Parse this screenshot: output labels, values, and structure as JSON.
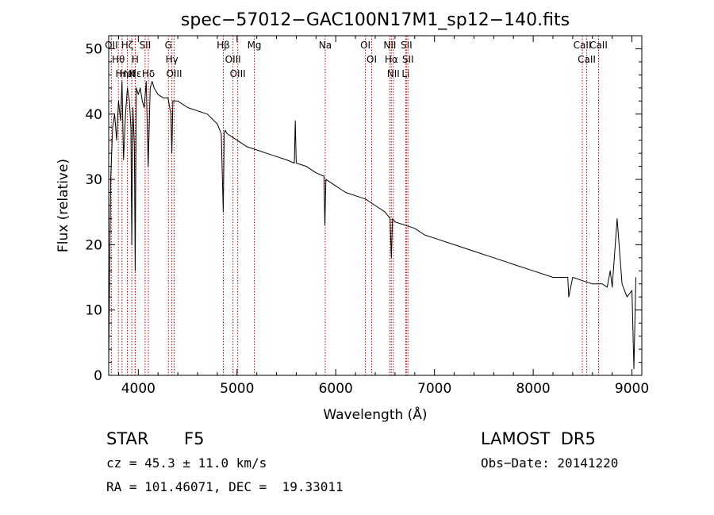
{
  "chart_data": {
    "type": "line",
    "title": "spec−57012−GAC100N17M1_sp12−140.fits",
    "xlabel": "Wavelength (Å)",
    "ylabel": "Flux (relative)",
    "xlim": [
      3700,
      9100
    ],
    "ylim": [
      0,
      52
    ],
    "xticks": [
      4000,
      5000,
      6000,
      7000,
      8000,
      9000
    ],
    "yticks": [
      0,
      10,
      20,
      30,
      40,
      50
    ],
    "grid": false,
    "legend": "none",
    "series": [
      {
        "x": [
          3700,
          3720,
          3740,
          3760,
          3780,
          3800,
          3820,
          3835,
          3850,
          3870,
          3890,
          3910,
          3925,
          3934,
          3945,
          3960,
          3968,
          3980,
          4000,
          4020,
          4040,
          4060,
          4080,
          4100,
          4120,
          4140,
          4160,
          4180,
          4200,
          4250,
          4300,
          4330,
          4340,
          4350,
          4400,
          4450,
          4500,
          4600,
          4700,
          4800,
          4840,
          4860,
          4870,
          4880,
          4900,
          4950,
          5000,
          5100,
          5200,
          5300,
          5400,
          5500,
          5580,
          5590,
          5600,
          5700,
          5800,
          5880,
          5890,
          5900,
          6000,
          6100,
          6200,
          6300,
          6400,
          6500,
          6550,
          6563,
          6575,
          6600,
          6700,
          6800,
          6900,
          7000,
          7200,
          7400,
          7600,
          7800,
          8000,
          8200,
          8350,
          8360,
          8400,
          8500,
          8600,
          8700,
          8750,
          8780,
          8800,
          8850,
          8900,
          8950,
          9000,
          9020,
          9040
        ],
        "values": [
          2,
          30,
          38,
          40,
          36,
          42,
          39,
          45,
          33,
          40,
          44,
          42,
          38,
          20,
          41,
          35,
          16,
          44,
          43,
          44,
          42,
          41,
          45,
          32,
          44,
          45,
          44,
          43.5,
          43,
          42.5,
          42.5,
          40,
          34,
          42,
          42,
          41.5,
          41,
          40.5,
          40,
          38.5,
          37,
          25,
          37,
          37.5,
          37,
          36.5,
          36,
          35,
          34.5,
          34,
          33.5,
          33,
          32.5,
          39,
          32.5,
          32,
          31,
          30.5,
          23,
          30,
          29,
          28,
          27.5,
          27,
          26,
          25,
          24,
          18,
          24,
          23.5,
          23,
          22.5,
          21.5,
          21,
          20,
          19,
          18,
          17,
          16,
          15,
          15,
          12,
          15,
          14.5,
          14,
          14,
          13.5,
          16,
          13.5,
          24,
          14,
          12,
          13,
          1,
          15
        ]
      }
    ],
    "annotations": [
      {
        "label": "OII",
        "x": 3727
      },
      {
        "label": "Hθ",
        "x": 3798
      },
      {
        "label": "Hη",
        "x": 3835
      },
      {
        "label": "Hζ",
        "x": 3889
      },
      {
        "label": "HeI",
        "x": 3889
      },
      {
        "label": "K",
        "x": 3934
      },
      {
        "label": "H",
        "x": 3968
      },
      {
        "label": "Hε",
        "x": 3970
      },
      {
        "label": "SII",
        "x": 4069
      },
      {
        "label": "Hδ",
        "x": 4102
      },
      {
        "label": "G",
        "x": 4305
      },
      {
        "label": "Hγ",
        "x": 4340
      },
      {
        "label": "OIII",
        "x": 4363
      },
      {
        "label": "Hβ",
        "x": 4861
      },
      {
        "label": "OIII",
        "x": 4959
      },
      {
        "label": "OIII",
        "x": 5007
      },
      {
        "label": "Mg",
        "x": 5175
      },
      {
        "label": "Na",
        "x": 5893
      },
      {
        "label": "OI",
        "x": 6300
      },
      {
        "label": "OI",
        "x": 6364
      },
      {
        "label": "NII",
        "x": 6548
      },
      {
        "label": "Hα",
        "x": 6563
      },
      {
        "label": "NII",
        "x": 6583
      },
      {
        "label": "Li",
        "x": 6708
      },
      {
        "label": "SII",
        "x": 6716
      },
      {
        "label": "SII",
        "x": 6731
      },
      {
        "label": "CaII",
        "x": 8498
      },
      {
        "label": "CaII",
        "x": 8542
      },
      {
        "label": "CaII",
        "x": 8662
      }
    ]
  },
  "info": {
    "object_class": "STAR",
    "subclass": "F5",
    "survey": "LAMOST  DR5",
    "redshift_text": "cz = 45.3 ± 11.0 km/s",
    "obs_date": "Obs−Date: 20141220",
    "coords": "RA = 101.46071, DEC =  19.33011"
  },
  "colors": {
    "spectrum": "#000000",
    "line_markers": "#cc0000",
    "text": "#000000"
  }
}
